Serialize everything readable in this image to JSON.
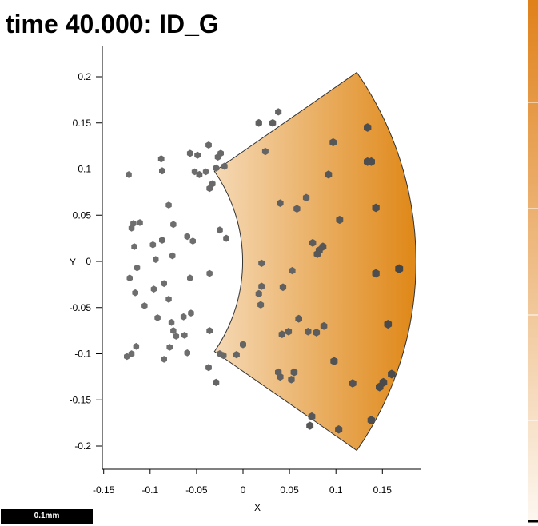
{
  "title": "time 40.000: ID_G",
  "scalebar_label": "0.1mm",
  "chart_data": {
    "type": "scatter",
    "title": "time 40.000: ID_G",
    "xlabel": "X",
    "ylabel": "Y",
    "xlim": [
      -0.155,
      0.19
    ],
    "ylim": [
      -0.225,
      0.235
    ],
    "xticks": [
      -0.15,
      -0.1,
      -0.05,
      0,
      0.05,
      0.1,
      0.15
    ],
    "xtick_labels": [
      "-0.15",
      "-0.1",
      "-0.05",
      "0",
      "0.05",
      "0.1",
      "0.15"
    ],
    "yticks": [
      0.2,
      0.15,
      0.1,
      0.05,
      0,
      -0.05,
      -0.1,
      -0.15,
      -0.2
    ],
    "ytick_labels": [
      "0.2",
      "0.15",
      "0.1",
      "0.05",
      "0",
      "-0.05",
      "-0.1",
      "-0.15",
      "-0.2"
    ],
    "grid": false,
    "domain_shape": "annular-sector",
    "sector": {
      "inner_radius": 0.17,
      "outer_radius": 0.357,
      "half_angle_deg": 35,
      "center_x": -0.17,
      "center_y": 0
    },
    "gradient_colors": [
      "#ffffff",
      "#e08a1c"
    ],
    "colorbar_colors": [
      "#fdf8f2",
      "#e0811a"
    ],
    "particle_color": "#6a6a6a",
    "particles": [
      {
        "x": -0.123,
        "y": 0.094,
        "s": 0.45
      },
      {
        "x": -0.088,
        "y": 0.111,
        "s": 0.5
      },
      {
        "x": -0.087,
        "y": 0.098,
        "s": 0.5
      },
      {
        "x": -0.08,
        "y": 0.061,
        "s": 0.45
      },
      {
        "x": -0.075,
        "y": 0.04,
        "s": 0.45
      },
      {
        "x": -0.118,
        "y": 0.041,
        "s": 0.45
      },
      {
        "x": -0.12,
        "y": 0.036,
        "s": 0.45
      },
      {
        "x": -0.111,
        "y": 0.042,
        "s": 0.45
      },
      {
        "x": -0.097,
        "y": 0.018,
        "s": 0.45
      },
      {
        "x": -0.087,
        "y": 0.023,
        "s": 0.5
      },
      {
        "x": -0.094,
        "y": 0.002,
        "s": 0.45
      },
      {
        "x": -0.117,
        "y": 0.016,
        "s": 0.45
      },
      {
        "x": -0.122,
        "y": -0.018,
        "s": 0.45
      },
      {
        "x": -0.114,
        "y": -0.007,
        "s": 0.45
      },
      {
        "x": -0.116,
        "y": -0.034,
        "s": 0.45
      },
      {
        "x": -0.106,
        "y": -0.048,
        "s": 0.45
      },
      {
        "x": -0.096,
        "y": -0.03,
        "s": 0.45
      },
      {
        "x": -0.085,
        "y": -0.024,
        "s": 0.45
      },
      {
        "x": -0.08,
        "y": -0.041,
        "s": 0.45
      },
      {
        "x": -0.092,
        "y": -0.061,
        "s": 0.45
      },
      {
        "x": -0.077,
        "y": -0.066,
        "s": 0.45
      },
      {
        "x": -0.075,
        "y": -0.075,
        "s": 0.45
      },
      {
        "x": -0.072,
        "y": -0.081,
        "s": 0.45
      },
      {
        "x": -0.079,
        "y": -0.093,
        "s": 0.45
      },
      {
        "x": -0.085,
        "y": -0.106,
        "s": 0.45
      },
      {
        "x": -0.115,
        "y": -0.092,
        "s": 0.45
      },
      {
        "x": -0.12,
        "y": -0.1,
        "s": 0.45
      },
      {
        "x": -0.125,
        "y": -0.103,
        "s": 0.45
      },
      {
        "x": -0.076,
        "y": 0.006,
        "s": 0.45
      },
      {
        "x": -0.06,
        "y": 0.027,
        "s": 0.45
      },
      {
        "x": -0.054,
        "y": 0.022,
        "s": 0.45
      },
      {
        "x": -0.057,
        "y": -0.018,
        "s": 0.45
      },
      {
        "x": -0.064,
        "y": -0.06,
        "s": 0.45
      },
      {
        "x": -0.063,
        "y": -0.08,
        "s": 0.45
      },
      {
        "x": -0.06,
        "y": -0.099,
        "s": 0.45
      },
      {
        "x": -0.056,
        "y": -0.056,
        "s": 0.45
      },
      {
        "x": -0.057,
        "y": 0.117,
        "s": 0.5
      },
      {
        "x": -0.049,
        "y": 0.115,
        "s": 0.5
      },
      {
        "x": -0.047,
        "y": 0.094,
        "s": 0.5
      },
      {
        "x": -0.052,
        "y": 0.097,
        "s": 0.45
      },
      {
        "x": -0.04,
        "y": 0.097,
        "s": 0.45
      },
      {
        "x": -0.036,
        "y": 0.079,
        "s": 0.5
      },
      {
        "x": -0.033,
        "y": 0.084,
        "s": 0.5
      },
      {
        "x": -0.037,
        "y": 0.126,
        "s": 0.5
      },
      {
        "x": -0.027,
        "y": 0.113,
        "s": 0.5
      },
      {
        "x": -0.024,
        "y": 0.117,
        "s": 0.5
      },
      {
        "x": -0.029,
        "y": 0.101,
        "s": 0.5
      },
      {
        "x": -0.02,
        "y": 0.103,
        "s": 0.5
      },
      {
        "x": -0.025,
        "y": 0.034,
        "s": 0.5
      },
      {
        "x": -0.018,
        "y": 0.025,
        "s": 0.5
      },
      {
        "x": -0.036,
        "y": -0.013,
        "s": 0.45
      },
      {
        "x": -0.036,
        "y": -0.075,
        "s": 0.5
      },
      {
        "x": -0.037,
        "y": -0.115,
        "s": 0.5
      },
      {
        "x": -0.029,
        "y": -0.131,
        "s": 0.55
      },
      {
        "x": -0.025,
        "y": -0.1,
        "s": 0.5
      },
      {
        "x": -0.021,
        "y": -0.102,
        "s": 0.5
      },
      {
        "x": -0.007,
        "y": -0.101,
        "s": 0.55
      },
      {
        "x": 0.0,
        "y": -0.09,
        "s": 0.55
      },
      {
        "x": 0.017,
        "y": 0.15,
        "s": 0.6
      },
      {
        "x": 0.032,
        "y": 0.15,
        "s": 0.6
      },
      {
        "x": 0.038,
        "y": 0.162,
        "s": 0.55
      },
      {
        "x": 0.024,
        "y": 0.119,
        "s": 0.55
      },
      {
        "x": 0.02,
        "y": -0.002,
        "s": 0.55
      },
      {
        "x": 0.02,
        "y": -0.027,
        "s": 0.55
      },
      {
        "x": 0.017,
        "y": -0.035,
        "s": 0.55
      },
      {
        "x": 0.019,
        "y": -0.047,
        "s": 0.55
      },
      {
        "x": 0.04,
        "y": 0.063,
        "s": 0.6
      },
      {
        "x": 0.053,
        "y": -0.01,
        "s": 0.55
      },
      {
        "x": 0.043,
        "y": -0.028,
        "s": 0.6
      },
      {
        "x": 0.058,
        "y": 0.057,
        "s": 0.6
      },
      {
        "x": 0.068,
        "y": 0.069,
        "s": 0.6
      },
      {
        "x": 0.06,
        "y": -0.062,
        "s": 0.65
      },
      {
        "x": 0.042,
        "y": -0.079,
        "s": 0.6
      },
      {
        "x": 0.049,
        "y": -0.076,
        "s": 0.6
      },
      {
        "x": 0.07,
        "y": -0.076,
        "s": 0.6
      },
      {
        "x": 0.055,
        "y": -0.12,
        "s": 0.65
      },
      {
        "x": 0.038,
        "y": -0.12,
        "s": 0.6
      },
      {
        "x": 0.04,
        "y": -0.125,
        "s": 0.6
      },
      {
        "x": 0.052,
        "y": -0.128,
        "s": 0.6
      },
      {
        "x": 0.075,
        "y": 0.02,
        "s": 0.65
      },
      {
        "x": 0.082,
        "y": 0.012,
        "s": 0.7
      },
      {
        "x": 0.086,
        "y": 0.016,
        "s": 0.7
      },
      {
        "x": 0.08,
        "y": 0.008,
        "s": 0.7
      },
      {
        "x": 0.087,
        "y": -0.07,
        "s": 0.65
      },
      {
        "x": 0.079,
        "y": -0.077,
        "s": 0.65
      },
      {
        "x": 0.074,
        "y": -0.168,
        "s": 0.7
      },
      {
        "x": 0.072,
        "y": -0.178,
        "s": 0.7
      },
      {
        "x": 0.097,
        "y": 0.129,
        "s": 0.7
      },
      {
        "x": 0.092,
        "y": 0.094,
        "s": 0.7
      },
      {
        "x": 0.104,
        "y": 0.045,
        "s": 0.7
      },
      {
        "x": 0.098,
        "y": -0.108,
        "s": 0.75
      },
      {
        "x": 0.103,
        "y": -0.182,
        "s": 0.75
      },
      {
        "x": 0.118,
        "y": -0.132,
        "s": 0.75
      },
      {
        "x": 0.134,
        "y": 0.145,
        "s": 0.8
      },
      {
        "x": 0.134,
        "y": 0.108,
        "s": 0.8
      },
      {
        "x": 0.138,
        "y": 0.108,
        "s": 0.8
      },
      {
        "x": 0.143,
        "y": 0.058,
        "s": 0.8
      },
      {
        "x": 0.143,
        "y": -0.013,
        "s": 0.8
      },
      {
        "x": 0.138,
        "y": -0.172,
        "s": 0.8
      },
      {
        "x": 0.156,
        "y": -0.068,
        "s": 0.85
      },
      {
        "x": 0.147,
        "y": -0.136,
        "s": 0.85
      },
      {
        "x": 0.151,
        "y": -0.131,
        "s": 0.85
      },
      {
        "x": 0.16,
        "y": -0.122,
        "s": 0.85
      },
      {
        "x": 0.168,
        "y": -0.008,
        "s": 0.9
      }
    ]
  }
}
